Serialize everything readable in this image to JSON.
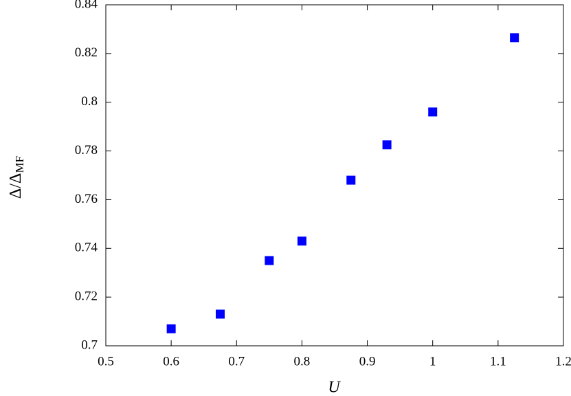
{
  "chart_data": {
    "type": "scatter",
    "x_label": "U",
    "y_label": {
      "main": "Δ/Δ",
      "subscript": "MF"
    },
    "x": [
      0.6,
      0.675,
      0.75,
      0.8,
      0.875,
      0.93,
      1.0,
      1.125
    ],
    "values": [
      0.707,
      0.713,
      0.735,
      0.743,
      0.768,
      0.7825,
      0.796,
      0.8265
    ],
    "color": "#0000ff",
    "xlim": [
      0.5,
      1.2
    ],
    "xticks": [
      0.5,
      0.6,
      0.7,
      0.8,
      0.9,
      1,
      1.1,
      1.2
    ],
    "ylim": [
      0.7,
      0.84
    ],
    "yticks": [
      0.7,
      0.72,
      0.74,
      0.76,
      0.78,
      0.8,
      0.82,
      0.84
    ],
    "grid": false
  }
}
